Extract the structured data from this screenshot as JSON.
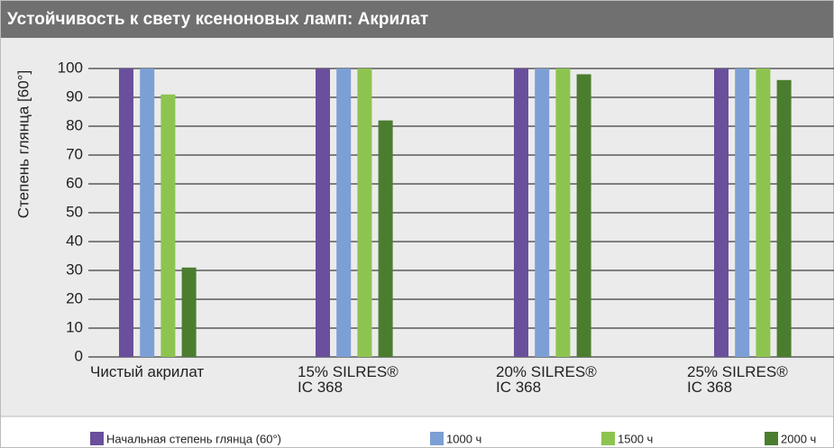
{
  "chart_data": {
    "type": "bar",
    "title": "Устойчивость к свету ксеноновых ламп: Акрилат",
    "y_label": "Степень глянца [60°]",
    "categories": [
      "Чистый акрилат",
      "15% SILRES®\nIC 368",
      "20% SILRES®\nIC 368",
      "25% SILRES®\nIC 368"
    ],
    "series": [
      {
        "name": "Начальная степень глянца (60°)",
        "color": "#6a4f9c",
        "values": [
          100,
          100,
          100,
          100
        ]
      },
      {
        "name": "1000 ч",
        "color": "#7c9fd5",
        "values": [
          100,
          100,
          100,
          100
        ]
      },
      {
        "name": "1500 ч",
        "color": "#8dc450",
        "values": [
          91,
          100,
          100,
          100
        ]
      },
      {
        "name": "2000 ч",
        "color": "#4b7d2f",
        "values": [
          31,
          82,
          98,
          96
        ]
      }
    ],
    "ylim": [
      0,
      100
    ],
    "yticks": [
      0,
      10,
      20,
      30,
      40,
      50,
      60,
      70,
      80,
      90,
      100
    ],
    "grid": true
  }
}
